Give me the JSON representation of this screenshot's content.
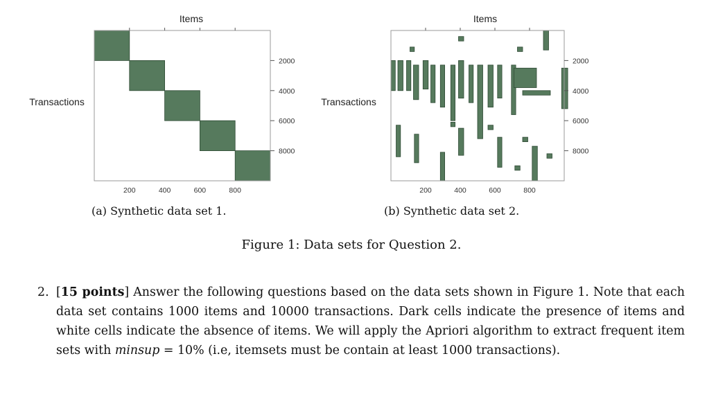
{
  "chart_data": [
    {
      "type": "heatmap",
      "title": "Items",
      "ylabel": "Transactions",
      "caption": "(a) Synthetic data set 1.",
      "xticks": [
        "200",
        "400",
        "600",
        "800"
      ],
      "yticks": [
        "2000",
        "4000",
        "6000",
        "8000"
      ],
      "xlim": [
        0,
        1000
      ],
      "ylim": [
        0,
        10000
      ],
      "blocks": [
        {
          "items": [
            0,
            200
          ],
          "transactions": [
            0,
            2000
          ]
        },
        {
          "items": [
            200,
            400
          ],
          "transactions": [
            2000,
            4000
          ]
        },
        {
          "items": [
            400,
            600
          ],
          "transactions": [
            4000,
            6000
          ]
        },
        {
          "items": [
            600,
            800
          ],
          "transactions": [
            6000,
            8000
          ]
        },
        {
          "items": [
            800,
            1000
          ],
          "transactions": [
            8000,
            10000
          ]
        }
      ]
    },
    {
      "type": "heatmap",
      "title": "Items",
      "ylabel": "Transactions",
      "caption": "(b) Synthetic data set 2.",
      "xticks": [
        "200",
        "400",
        "600",
        "800"
      ],
      "yticks": [
        "2000",
        "4000",
        "6000",
        "8000"
      ],
      "xlim": [
        0,
        1000
      ],
      "ylim": [
        0,
        10000
      ],
      "blocks": [
        {
          "items": [
            0,
            25
          ],
          "transactions": [
            2000,
            4000
          ]
        },
        {
          "items": [
            40,
            70
          ],
          "transactions": [
            2000,
            4000
          ]
        },
        {
          "items": [
            90,
            115
          ],
          "transactions": [
            2000,
            4000
          ]
        },
        {
          "items": [
            130,
            160
          ],
          "transactions": [
            2300,
            4600
          ]
        },
        {
          "items": [
            185,
            215
          ],
          "transactions": [
            2000,
            3900
          ]
        },
        {
          "items": [
            230,
            255
          ],
          "transactions": [
            2300,
            4800
          ]
        },
        {
          "items": [
            285,
            310
          ],
          "transactions": [
            2300,
            5100
          ]
        },
        {
          "items": [
            345,
            370
          ],
          "transactions": [
            2300,
            6000
          ]
        },
        {
          "items": [
            390,
            420
          ],
          "transactions": [
            2000,
            4500
          ]
        },
        {
          "items": [
            450,
            475
          ],
          "transactions": [
            2300,
            4800
          ]
        },
        {
          "items": [
            500,
            530
          ],
          "transactions": [
            2300,
            7200
          ]
        },
        {
          "items": [
            560,
            590
          ],
          "transactions": [
            2300,
            5100
          ]
        },
        {
          "items": [
            615,
            640
          ],
          "transactions": [
            2300,
            4500
          ]
        },
        {
          "items": [
            695,
            720
          ],
          "transactions": [
            2300,
            5600
          ]
        },
        {
          "items": [
            710,
            840
          ],
          "transactions": [
            2500,
            3800
          ]
        },
        {
          "items": [
            760,
            920
          ],
          "transactions": [
            4000,
            4300
          ]
        },
        {
          "items": [
            985,
            1020
          ],
          "transactions": [
            2500,
            5200
          ]
        },
        {
          "items": [
            880,
            910
          ],
          "transactions": [
            0,
            1300
          ]
        },
        {
          "items": [
            110,
            135
          ],
          "transactions": [
            1100,
            1400
          ]
        },
        {
          "items": [
            390,
            420
          ],
          "transactions": [
            400,
            700
          ]
        },
        {
          "items": [
            730,
            760
          ],
          "transactions": [
            1100,
            1400
          ]
        },
        {
          "items": [
            30,
            55
          ],
          "transactions": [
            6300,
            8400
          ]
        },
        {
          "items": [
            135,
            160
          ],
          "transactions": [
            6900,
            8800
          ]
        },
        {
          "items": [
            345,
            370
          ],
          "transactions": [
            6100,
            6400
          ]
        },
        {
          "items": [
            390,
            420
          ],
          "transactions": [
            6500,
            8300
          ]
        },
        {
          "items": [
            560,
            590
          ],
          "transactions": [
            6300,
            6600
          ]
        },
        {
          "items": [
            615,
            640
          ],
          "transactions": [
            7100,
            9100
          ]
        },
        {
          "items": [
            285,
            310
          ],
          "transactions": [
            8100,
            10000
          ]
        },
        {
          "items": [
            760,
            790
          ],
          "transactions": [
            7100,
            7400
          ]
        },
        {
          "items": [
            815,
            845
          ],
          "transactions": [
            7700,
            10000
          ]
        },
        {
          "items": [
            900,
            930
          ],
          "transactions": [
            8200,
            8500
          ]
        },
        {
          "items": [
            715,
            745
          ],
          "transactions": [
            9000,
            9300
          ]
        }
      ]
    }
  ],
  "figure_caption": "Figure 1: Data sets for Question 2.",
  "question": {
    "number": "2.",
    "points_open": "[",
    "points": "15 points",
    "points_close": "]",
    "text_1": " Answer the following questions based on the data sets shown in Figure 1. Note that each data set contains 1000 items and 10000 transactions. Dark cells indicate the presence of items and white cells indicate the absence of items. We will apply the Apriori algorithm to extract frequent item sets with ",
    "minsup_var": "minsup",
    "text_2": " = 10% (i.e, itemsets must be contain at least 1000 transactions)."
  },
  "colors": {
    "cell": "#567a5d",
    "cell_edge": "#2f4a35",
    "frame": "#9a9a9a",
    "text": "#222222"
  }
}
